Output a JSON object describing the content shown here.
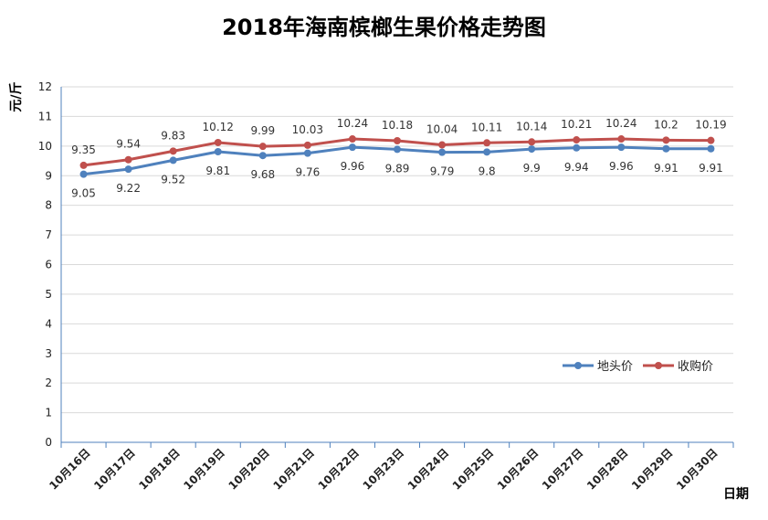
{
  "chart_data": {
    "type": "line",
    "title": "2018年海南槟榔生果价格走势图",
    "xlabel": "日期",
    "ylabel": "元/斤",
    "ylim": [
      0,
      12
    ],
    "yticks": [
      "0",
      "1",
      "2",
      "3",
      "4",
      "5",
      "6",
      "7",
      "8",
      "9",
      "10",
      "11",
      "12"
    ],
    "grid": true,
    "legend_position": "right",
    "categories": [
      "10月16日",
      "10月17日",
      "10月18日",
      "10月19日",
      "10月20日",
      "10月21日",
      "10月22日",
      "10月23日",
      "10月24日",
      "10月25日",
      "10月26日",
      "10月27日",
      "10月28日",
      "10月29日",
      "10月30日"
    ],
    "series": [
      {
        "name": "地头价",
        "color": "#4F81BD",
        "values": [
          9.05,
          9.22,
          9.52,
          9.81,
          9.68,
          9.76,
          9.96,
          9.89,
          9.79,
          9.8,
          9.9,
          9.94,
          9.96,
          9.91,
          9.91
        ],
        "labels": [
          "9.05",
          "9.22",
          "9.52",
          "9.81",
          "9.68",
          "9.76",
          "9.96",
          "9.89",
          "9.79",
          "9.8",
          "9.9",
          "9.94",
          "9.96",
          "9.91",
          "9.91"
        ]
      },
      {
        "name": "收购价",
        "color": "#C0504D",
        "values": [
          9.35,
          9.54,
          9.83,
          10.12,
          9.99,
          10.03,
          10.24,
          10.18,
          10.04,
          10.11,
          10.14,
          10.21,
          10.24,
          10.2,
          10.19
        ],
        "labels": [
          "9.35",
          "9.54",
          "9.83",
          "10.12",
          "9.99",
          "10.03",
          "10.24",
          "10.18",
          "10.04",
          "10.11",
          "10.14",
          "10.21",
          "10.24",
          "10.2",
          "10.19"
        ]
      }
    ]
  }
}
